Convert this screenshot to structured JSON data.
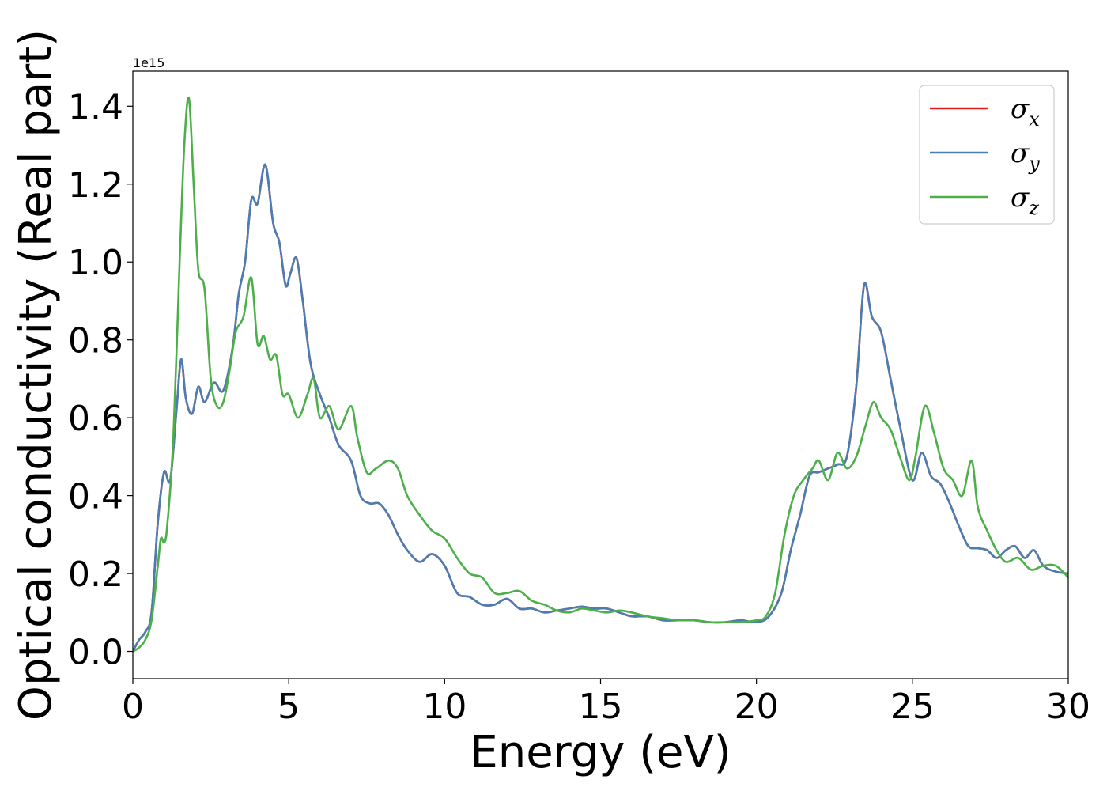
{
  "chart_data": {
    "type": "line",
    "title": "",
    "xlabel": "Energy (eV)",
    "ylabel": "Optical conductivity (Real part)",
    "y_offset_label": "1e15",
    "xlim": [
      0,
      30
    ],
    "ylim": [
      -0.07,
      1.49
    ],
    "xticks": [
      0,
      5,
      10,
      15,
      20,
      25,
      30
    ],
    "xtick_labels": [
      "0",
      "5",
      "10",
      "15",
      "20",
      "25",
      "30"
    ],
    "yticks": [
      0.0,
      0.2,
      0.4,
      0.6,
      0.8,
      1.0,
      1.2,
      1.4
    ],
    "ytick_labels": [
      "0.0",
      "0.2",
      "0.4",
      "0.6",
      "0.8",
      "1.0",
      "1.2",
      "1.4"
    ],
    "grid": false,
    "legend_position": "top-right",
    "series": [
      {
        "name": "σx",
        "legend_symbol": "σ",
        "legend_subscript": "x",
        "color": "#e41a1c",
        "x": [
          0,
          0.2,
          0.4,
          0.6,
          0.8,
          1.0,
          1.2,
          1.4,
          1.55,
          1.7,
          1.9,
          2.1,
          2.3,
          2.6,
          2.9,
          3.2,
          3.4,
          3.6,
          3.8,
          4.0,
          4.25,
          4.5,
          4.7,
          4.9,
          5.05,
          5.25,
          5.45,
          5.7,
          6.0,
          6.3,
          6.6,
          7.0,
          7.3,
          7.6,
          7.9,
          8.2,
          8.5,
          8.8,
          9.2,
          9.6,
          10.0,
          10.4,
          10.8,
          11.2,
          11.6,
          12.0,
          12.4,
          12.8,
          13.2,
          13.6,
          14.0,
          14.4,
          14.8,
          15.2,
          15.6,
          16.0,
          16.5,
          17.0,
          17.5,
          18.0,
          18.5,
          19.0,
          19.5,
          20.0,
          20.4,
          20.8,
          21.1,
          21.4,
          21.7,
          22.0,
          22.3,
          22.6,
          22.9,
          23.2,
          23.45,
          23.7,
          24.0,
          24.3,
          24.6,
          25.0,
          25.3,
          25.6,
          25.9,
          26.2,
          26.5,
          26.8,
          27.1,
          27.4,
          27.7,
          28.0,
          28.3,
          28.6,
          28.9,
          29.2,
          29.6,
          30.0
        ],
        "values": [
          0.0,
          0.03,
          0.05,
          0.1,
          0.33,
          0.46,
          0.44,
          0.62,
          0.75,
          0.65,
          0.61,
          0.68,
          0.64,
          0.69,
          0.67,
          0.78,
          0.92,
          1.0,
          1.16,
          1.15,
          1.25,
          1.1,
          1.05,
          0.94,
          0.97,
          1.01,
          0.9,
          0.74,
          0.66,
          0.6,
          0.53,
          0.49,
          0.4,
          0.38,
          0.38,
          0.35,
          0.3,
          0.26,
          0.23,
          0.25,
          0.22,
          0.15,
          0.14,
          0.12,
          0.12,
          0.135,
          0.11,
          0.11,
          0.1,
          0.105,
          0.11,
          0.115,
          0.11,
          0.11,
          0.1,
          0.09,
          0.09,
          0.08,
          0.08,
          0.08,
          0.075,
          0.075,
          0.08,
          0.075,
          0.09,
          0.15,
          0.26,
          0.35,
          0.45,
          0.46,
          0.47,
          0.48,
          0.5,
          0.68,
          0.94,
          0.86,
          0.82,
          0.7,
          0.58,
          0.44,
          0.51,
          0.45,
          0.43,
          0.38,
          0.32,
          0.27,
          0.265,
          0.26,
          0.24,
          0.26,
          0.27,
          0.24,
          0.26,
          0.22,
          0.205,
          0.2
        ]
      },
      {
        "name": "σy",
        "legend_symbol": "σ",
        "legend_subscript": "y",
        "color": "#4a7eb3",
        "x": [
          0,
          0.2,
          0.4,
          0.6,
          0.8,
          1.0,
          1.2,
          1.4,
          1.55,
          1.7,
          1.9,
          2.1,
          2.3,
          2.6,
          2.9,
          3.2,
          3.4,
          3.6,
          3.8,
          4.0,
          4.25,
          4.5,
          4.7,
          4.9,
          5.05,
          5.25,
          5.45,
          5.7,
          6.0,
          6.3,
          6.6,
          7.0,
          7.3,
          7.6,
          7.9,
          8.2,
          8.5,
          8.8,
          9.2,
          9.6,
          10.0,
          10.4,
          10.8,
          11.2,
          11.6,
          12.0,
          12.4,
          12.8,
          13.2,
          13.6,
          14.0,
          14.4,
          14.8,
          15.2,
          15.6,
          16.0,
          16.5,
          17.0,
          17.5,
          18.0,
          18.5,
          19.0,
          19.5,
          20.0,
          20.4,
          20.8,
          21.1,
          21.4,
          21.7,
          22.0,
          22.3,
          22.6,
          22.9,
          23.2,
          23.45,
          23.7,
          24.0,
          24.3,
          24.6,
          25.0,
          25.3,
          25.6,
          25.9,
          26.2,
          26.5,
          26.8,
          27.1,
          27.4,
          27.7,
          28.0,
          28.3,
          28.6,
          28.9,
          29.2,
          29.6,
          30.0
        ],
        "values": [
          0.0,
          0.03,
          0.05,
          0.1,
          0.33,
          0.46,
          0.44,
          0.62,
          0.75,
          0.65,
          0.61,
          0.68,
          0.64,
          0.69,
          0.67,
          0.78,
          0.92,
          1.0,
          1.16,
          1.15,
          1.25,
          1.1,
          1.05,
          0.94,
          0.97,
          1.01,
          0.9,
          0.74,
          0.66,
          0.6,
          0.53,
          0.49,
          0.4,
          0.38,
          0.38,
          0.35,
          0.3,
          0.26,
          0.23,
          0.25,
          0.22,
          0.15,
          0.14,
          0.12,
          0.12,
          0.135,
          0.11,
          0.11,
          0.1,
          0.105,
          0.11,
          0.115,
          0.11,
          0.11,
          0.1,
          0.09,
          0.09,
          0.08,
          0.08,
          0.08,
          0.075,
          0.075,
          0.08,
          0.075,
          0.09,
          0.15,
          0.26,
          0.35,
          0.45,
          0.46,
          0.47,
          0.48,
          0.5,
          0.68,
          0.94,
          0.86,
          0.82,
          0.7,
          0.58,
          0.44,
          0.51,
          0.45,
          0.43,
          0.38,
          0.32,
          0.27,
          0.265,
          0.26,
          0.24,
          0.26,
          0.27,
          0.24,
          0.26,
          0.22,
          0.205,
          0.2
        ]
      },
      {
        "name": "σz",
        "legend_symbol": "σ",
        "legend_subscript": "z",
        "color": "#4daf4a",
        "x": [
          0,
          0.2,
          0.4,
          0.6,
          0.8,
          0.9,
          1.0,
          1.1,
          1.3,
          1.5,
          1.65,
          1.8,
          1.95,
          2.1,
          2.3,
          2.5,
          2.7,
          2.9,
          3.1,
          3.3,
          3.55,
          3.8,
          4.0,
          4.2,
          4.4,
          4.6,
          4.8,
          5.0,
          5.3,
          5.6,
          5.8,
          6.0,
          6.3,
          6.6,
          7.0,
          7.2,
          7.5,
          7.8,
          8.2,
          8.5,
          8.8,
          9.2,
          9.6,
          10.0,
          10.4,
          10.8,
          11.2,
          11.6,
          12.0,
          12.4,
          12.8,
          13.2,
          13.6,
          14.0,
          14.4,
          14.8,
          15.2,
          15.6,
          16.0,
          16.5,
          17.0,
          17.5,
          18.0,
          18.5,
          19.0,
          19.5,
          20.0,
          20.3,
          20.6,
          20.9,
          21.2,
          21.5,
          21.8,
          22.0,
          22.3,
          22.6,
          22.9,
          23.2,
          23.5,
          23.75,
          24.0,
          24.3,
          24.6,
          24.9,
          25.1,
          25.4,
          25.7,
          26.0,
          26.3,
          26.6,
          26.9,
          27.1,
          27.4,
          27.7,
          28.0,
          28.4,
          28.8,
          29.2,
          29.6,
          30.0
        ],
        "values": [
          0.0,
          0.01,
          0.03,
          0.08,
          0.22,
          0.29,
          0.28,
          0.32,
          0.55,
          1.0,
          1.3,
          1.42,
          1.2,
          0.98,
          0.93,
          0.7,
          0.63,
          0.64,
          0.72,
          0.82,
          0.86,
          0.96,
          0.79,
          0.81,
          0.75,
          0.76,
          0.66,
          0.66,
          0.6,
          0.66,
          0.7,
          0.6,
          0.63,
          0.57,
          0.63,
          0.55,
          0.46,
          0.47,
          0.49,
          0.47,
          0.4,
          0.35,
          0.31,
          0.29,
          0.24,
          0.2,
          0.19,
          0.15,
          0.15,
          0.155,
          0.13,
          0.12,
          0.105,
          0.1,
          0.11,
          0.105,
          0.1,
          0.105,
          0.1,
          0.09,
          0.085,
          0.08,
          0.08,
          0.075,
          0.075,
          0.075,
          0.08,
          0.09,
          0.15,
          0.3,
          0.4,
          0.44,
          0.47,
          0.49,
          0.44,
          0.51,
          0.47,
          0.5,
          0.58,
          0.64,
          0.6,
          0.57,
          0.5,
          0.44,
          0.5,
          0.63,
          0.56,
          0.47,
          0.44,
          0.4,
          0.49,
          0.37,
          0.31,
          0.26,
          0.23,
          0.24,
          0.21,
          0.22,
          0.22,
          0.19
        ]
      }
    ]
  }
}
